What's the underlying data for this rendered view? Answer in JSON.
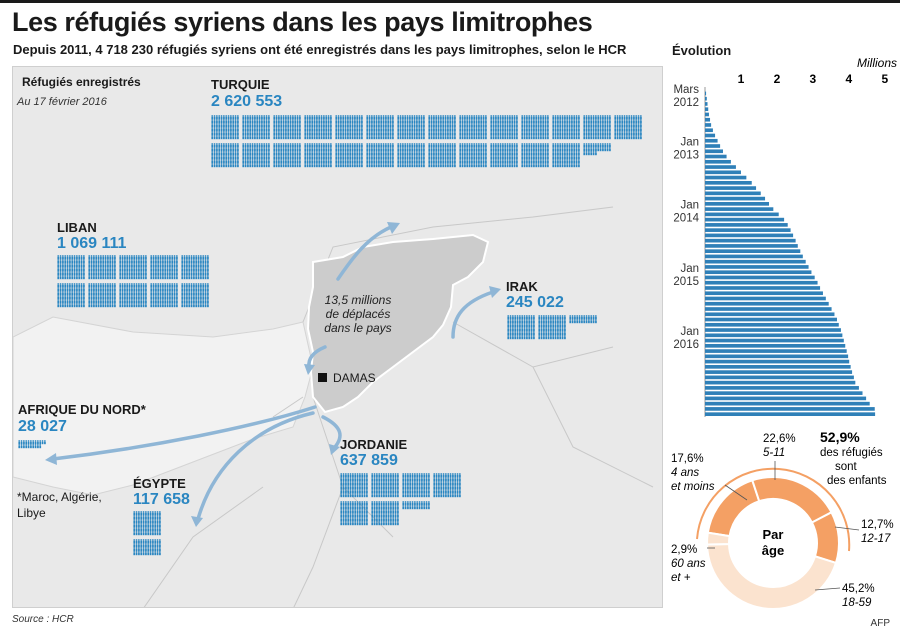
{
  "header": {
    "title": "Les réfugiés syriens dans les pays limitrophes",
    "subtitle": "Depuis 2011, 4 718 230 réfugiés syriens ont été enregistrés dans les pays limitrophes, selon le HCR"
  },
  "map": {
    "heading": "Réfugiés enregistrés",
    "date": "Au 17 février 2016",
    "displaced_line1": "13,5 millions",
    "displaced_line2": "de déplacés",
    "displaced_line3": "dans le pays",
    "capital": "DAMAS",
    "footnote_line1": "*Maroc, Algérie,",
    "footnote_line2": "Libye",
    "countries": {
      "turquie": {
        "name": "TURQUIE",
        "value": "2 620 553"
      },
      "liban": {
        "name": "LIBAN",
        "value": "1 069 111"
      },
      "irak": {
        "name": "IRAK",
        "value": "245 022"
      },
      "afrique": {
        "name": "AFRIQUE DU NORD*",
        "value": "28 027"
      },
      "egypte": {
        "name": "ÉGYPTE",
        "value": "117 658"
      },
      "jordanie": {
        "name": "JORDANIE",
        "value": "637 859"
      }
    },
    "icon_color": "#2a86c1",
    "land_color": "#cccccc",
    "arrow_color": "#8fb6d6"
  },
  "evolution": {
    "title": "Évolution",
    "unit": "Millions",
    "labels": {
      "mars": "Mars",
      "y2012": "2012",
      "jan13": "Jan",
      "y2013": "2013",
      "jan14": "Jan",
      "y2014": "2014",
      "jan15": "Jan",
      "y2015": "2015",
      "jan16": "Jan",
      "y2016": "2016"
    }
  },
  "age": {
    "center_line1": "Par",
    "center_line2": "âge",
    "kids_pct": "52,9%",
    "kids_line1": "des réfugiés",
    "kids_line2": "sont",
    "kids_line3": "des enfants",
    "seg_0_4": {
      "pct": "17,6%",
      "line1": "4 ans",
      "line2": "et moins"
    },
    "seg_5_11": {
      "pct": "22,6%",
      "label": "5-11"
    },
    "seg_12_17": {
      "pct": "12,7%",
      "label": "12-17"
    },
    "seg_18_59": {
      "pct": "45,2%",
      "label": "18-59"
    },
    "seg_60": {
      "pct": "2,9%",
      "line1": "60 ans",
      "line2": "et +"
    }
  },
  "footer": {
    "source": "Source : HCR",
    "agency": "AFP"
  },
  "chart_data": [
    {
      "type": "bar",
      "orientation": "horizontal",
      "title": "Évolution",
      "unit": "Millions",
      "xlim": [
        0,
        5.2
      ],
      "xticks": [
        1,
        2,
        3,
        4,
        5
      ],
      "period_start": "Mars 2012",
      "period_end": "2016",
      "values": [
        0.03,
        0.05,
        0.07,
        0.09,
        0.11,
        0.14,
        0.17,
        0.22,
        0.28,
        0.35,
        0.42,
        0.5,
        0.6,
        0.72,
        0.86,
        1.0,
        1.15,
        1.3,
        1.42,
        1.55,
        1.67,
        1.78,
        1.9,
        2.05,
        2.2,
        2.3,
        2.38,
        2.45,
        2.52,
        2.58,
        2.65,
        2.72,
        2.8,
        2.88,
        2.96,
        3.05,
        3.13,
        3.2,
        3.28,
        3.36,
        3.44,
        3.52,
        3.6,
        3.67,
        3.72,
        3.78,
        3.82,
        3.86,
        3.9,
        3.94,
        3.98,
        4.01,
        4.05,
        4.09,
        4.14,
        4.18,
        4.28,
        4.38,
        4.48,
        4.58,
        4.72,
        4.73
      ]
    },
    {
      "type": "pie",
      "title": "Par âge",
      "categories": [
        "4 ans et moins",
        "5-11",
        "12-17",
        "18-59",
        "60 ans et +"
      ],
      "values": [
        17.6,
        22.6,
        12.7,
        45.2,
        2.9
      ],
      "colors": [
        "#f4a064",
        "#f4a064",
        "#f4a064",
        "#fbe3cf",
        "#fbe3cf"
      ]
    }
  ]
}
